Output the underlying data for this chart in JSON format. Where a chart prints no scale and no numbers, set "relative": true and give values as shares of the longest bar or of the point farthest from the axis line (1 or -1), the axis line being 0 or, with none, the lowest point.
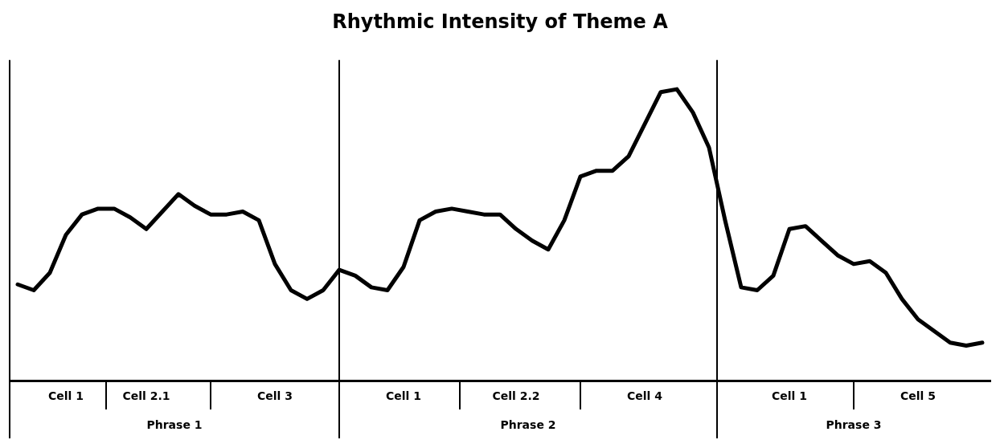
{
  "chart_data": {
    "type": "line",
    "title": "Rhythmic Intensity of Theme A",
    "relative": true,
    "marker": "none",
    "line_style": "solid",
    "legend": false,
    "grid": "x",
    "categories": [
      null,
      null,
      null,
      "Cell 1",
      null,
      null,
      null,
      null,
      "Cell 2.1",
      null,
      null,
      null,
      null,
      null,
      null,
      null,
      "Cell 3",
      null,
      null,
      null,
      null,
      null,
      null,
      null,
      "Cell 1",
      null,
      null,
      null,
      null,
      null,
      null,
      "Cell 2.2",
      null,
      null,
      null,
      null,
      null,
      null,
      null,
      "Cell 4",
      null,
      null,
      null,
      null,
      null,
      null,
      null,
      null,
      "Cell 1",
      null,
      null,
      null,
      null,
      null,
      null,
      null,
      "Cell 5",
      null,
      null,
      null,
      null
    ],
    "series": [
      {
        "color": "#000000",
        "values": [
          0.33,
          0.31,
          0.37,
          0.5,
          0.57,
          0.59,
          0.59,
          0.56,
          0.52,
          0.58,
          0.64,
          0.6,
          0.57,
          0.57,
          0.58,
          0.55,
          0.4,
          0.31,
          0.28,
          0.31,
          0.38,
          0.36,
          0.32,
          0.31,
          0.39,
          0.55,
          0.58,
          0.59,
          0.58,
          0.57,
          0.57,
          0.52,
          0.48,
          0.45,
          0.55,
          0.7,
          0.72,
          0.72,
          0.77,
          0.88,
          0.99,
          1,
          0.92,
          0.8,
          0.55,
          0.32,
          0.31,
          0.36,
          0.52,
          0.53,
          0.48,
          0.43,
          0.4,
          0.41,
          0.37,
          0.28,
          0.21,
          0.17,
          0.13,
          0.12,
          0.13
        ]
      }
    ],
    "annotations": [
      "Phrase 1",
      "Phrase 2",
      "Phrase 3"
    ]
  }
}
